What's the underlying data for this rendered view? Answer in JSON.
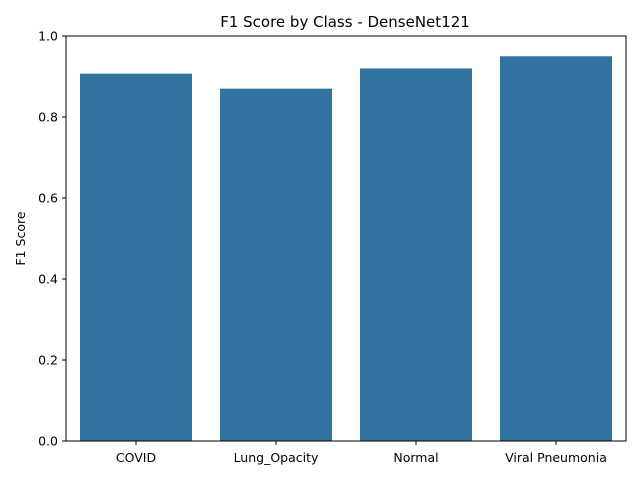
{
  "chart_data": {
    "type": "bar",
    "title": "F1 Score by Class - DenseNet121",
    "xlabel": "",
    "ylabel": "F1 Score",
    "categories": [
      "COVID",
      "Lung_Opacity",
      "Normal",
      "Viral Pneumonia"
    ],
    "values": [
      0.907,
      0.87,
      0.92,
      0.95
    ],
    "ylim": [
      0,
      1.0
    ],
    "yticks": [
      "0.0",
      "0.2",
      "0.4",
      "0.6",
      "0.8",
      "1.0"
    ],
    "bar_color": "#3274a1",
    "grid": false,
    "legend": "none"
  }
}
